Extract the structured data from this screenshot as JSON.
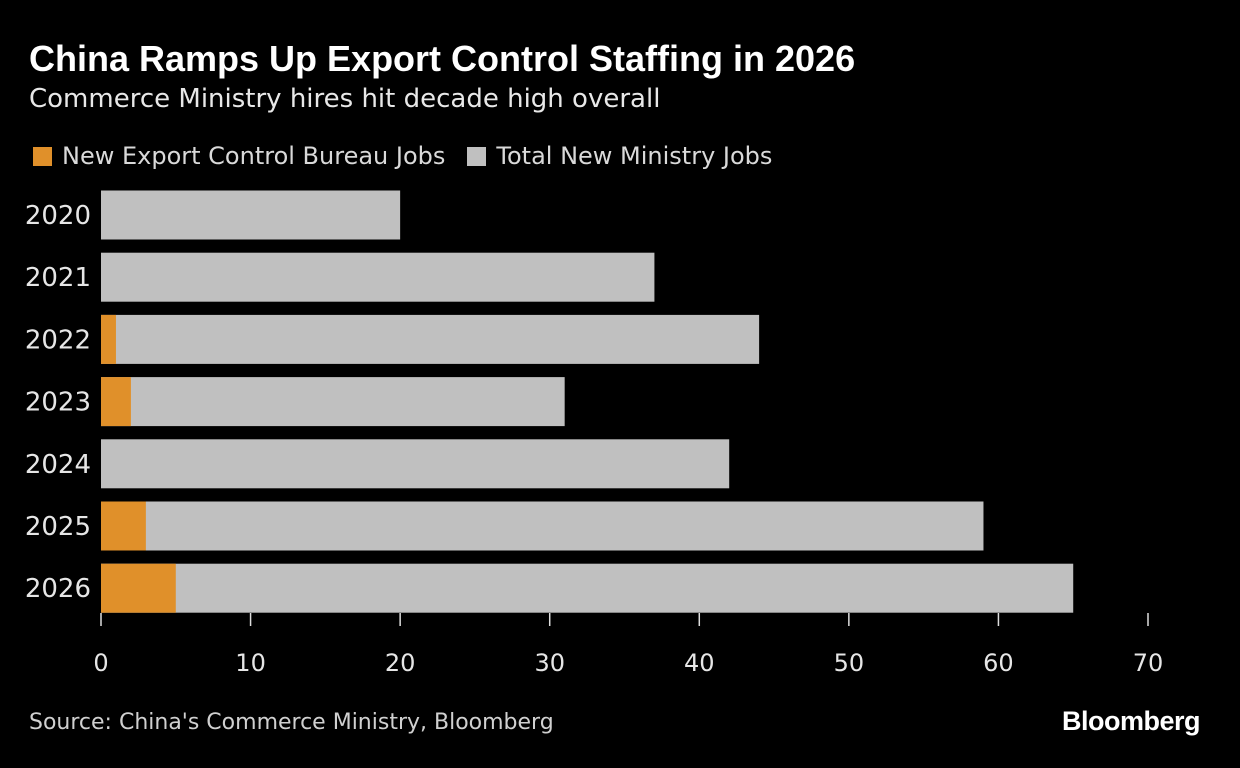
{
  "title": "China Ramps Up Export Control Staffing in 2026",
  "subtitle": "Commerce Ministry hires hit decade high overall",
  "legend": [
    {
      "label": "New Export Control Bureau Jobs",
      "color": "#e0902a"
    },
    {
      "label": "Total New Ministry Jobs",
      "color": "#c0c0c0"
    }
  ],
  "source": "Source: China's Commerce Ministry, Bloomberg",
  "logo": "Bloomberg",
  "chart_data": {
    "type": "bar",
    "orientation": "horizontal",
    "categories": [
      "2020",
      "2021",
      "2022",
      "2023",
      "2024",
      "2025",
      "2026"
    ],
    "series": [
      {
        "name": "New Export Control Bureau Jobs",
        "color": "#e0902a",
        "values": [
          0,
          0,
          1,
          2,
          0,
          3,
          5
        ]
      },
      {
        "name": "Total New Ministry Jobs",
        "color": "#c0c0c0",
        "values": [
          20,
          37,
          44,
          31,
          42,
          59,
          65
        ]
      }
    ],
    "xlim": [
      0,
      70
    ],
    "xticks": [
      0,
      10,
      20,
      30,
      40,
      50,
      60,
      70
    ],
    "grid": false,
    "legend_position": "top-left"
  }
}
